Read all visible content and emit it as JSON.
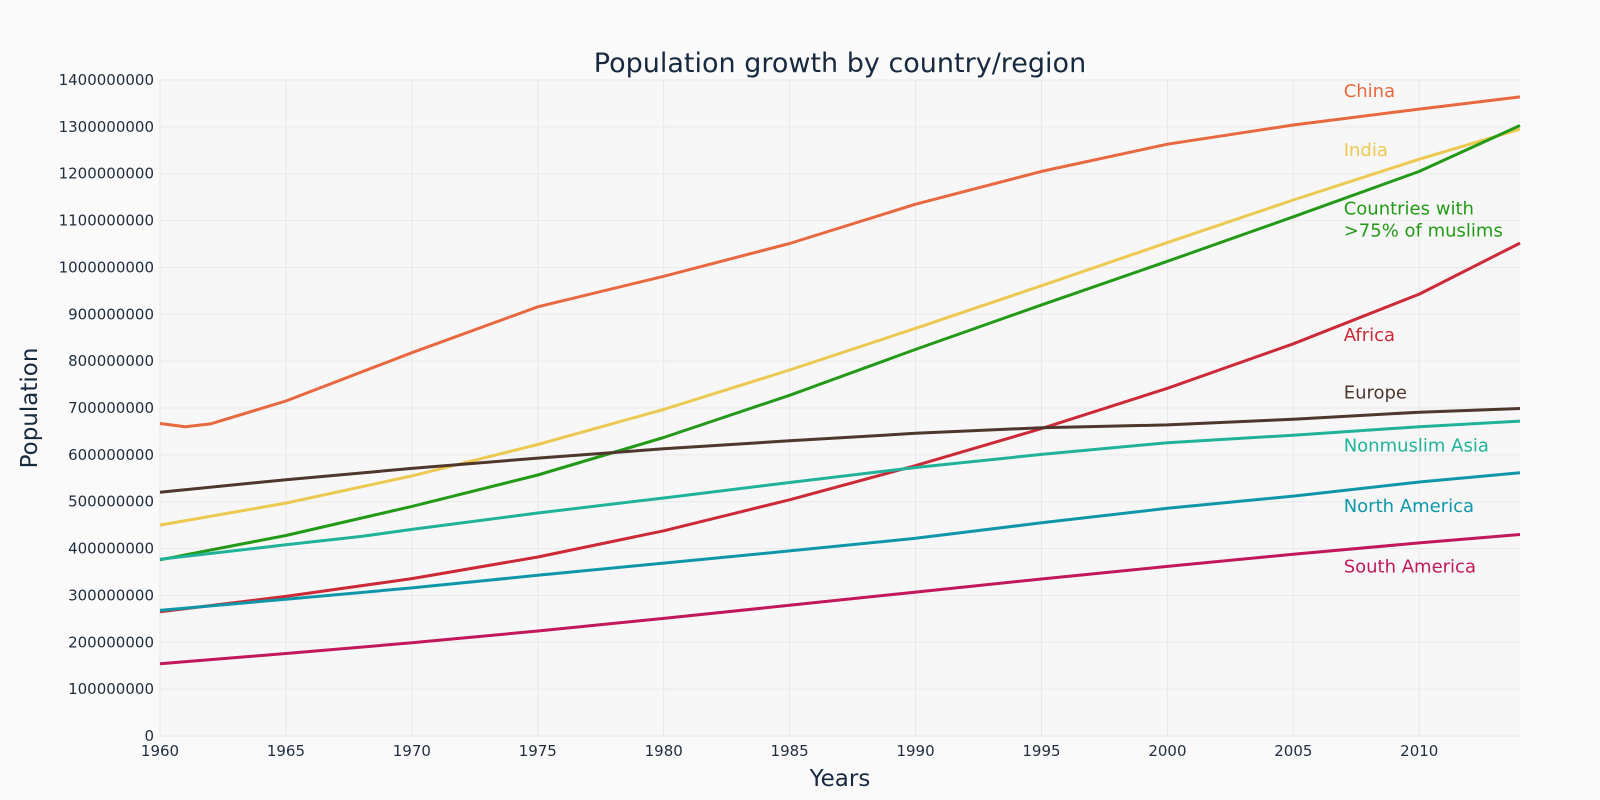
{
  "chart_data": {
    "type": "line",
    "title": "Population growth by country/region",
    "xlabel": "Years",
    "ylabel": "Population",
    "xlim": [
      1960,
      2014
    ],
    "ylim": [
      0,
      1400000000
    ],
    "grid": true,
    "x_ticks": [
      1960,
      1965,
      1970,
      1975,
      1980,
      1985,
      1990,
      1995,
      2000,
      2005,
      2010
    ],
    "x_tick_labels": [
      "1960",
      "1965",
      "1970",
      "1975",
      "1980",
      "1985",
      "1990",
      "1995",
      "2000",
      "2005",
      "2010"
    ],
    "y_ticks": [
      0,
      100000000,
      200000000,
      300000000,
      400000000,
      500000000,
      600000000,
      700000000,
      800000000,
      900000000,
      1000000000,
      1100000000,
      1200000000,
      1300000000,
      1400000000
    ],
    "y_tick_labels": [
      "0",
      "100000000",
      "200000000",
      "300000000",
      "400000000",
      "500000000",
      "600000000",
      "700000000",
      "800000000",
      "900000000",
      "1000000000",
      "1100000000",
      "1200000000",
      "1300000000",
      "1400000000"
    ],
    "series": [
      {
        "name": "China",
        "label_lines": [
          "China"
        ],
        "color": "#e8693f",
        "points": [
          [
            1960,
            667000000
          ],
          [
            1961,
            660000000
          ],
          [
            1962,
            666000000
          ],
          [
            1965,
            715000000
          ],
          [
            1970,
            818000000
          ],
          [
            1975,
            916000000
          ],
          [
            1980,
            981000000
          ],
          [
            1985,
            1051000000
          ],
          [
            1990,
            1135000000
          ],
          [
            1995,
            1205000000
          ],
          [
            2000,
            1263000000
          ],
          [
            2005,
            1304000000
          ],
          [
            2010,
            1338000000
          ],
          [
            2014,
            1364000000
          ]
        ]
      },
      {
        "name": "India",
        "label_lines": [
          "India"
        ],
        "color": "#edc951",
        "points": [
          [
            1960,
            450000000
          ],
          [
            1965,
            497000000
          ],
          [
            1970,
            555000000
          ],
          [
            1975,
            622000000
          ],
          [
            1980,
            697000000
          ],
          [
            1985,
            781000000
          ],
          [
            1990,
            870000000
          ],
          [
            1995,
            961000000
          ],
          [
            2000,
            1053000000
          ],
          [
            2005,
            1144000000
          ],
          [
            2010,
            1231000000
          ],
          [
            2014,
            1295000000
          ]
        ]
      },
      {
        "name": "Countries with >75% of muslims",
        "label_lines": [
          "Countries with",
          ">75% of muslims"
        ],
        "color": "#239a17",
        "points": [
          [
            1960,
            376000000
          ],
          [
            1965,
            428000000
          ],
          [
            1970,
            490000000
          ],
          [
            1975,
            557000000
          ],
          [
            1980,
            637000000
          ],
          [
            1985,
            727000000
          ],
          [
            1990,
            825000000
          ],
          [
            1995,
            920000000
          ],
          [
            2000,
            1013000000
          ],
          [
            2005,
            1108000000
          ],
          [
            2010,
            1205000000
          ],
          [
            2014,
            1303000000
          ]
        ]
      },
      {
        "name": "Africa",
        "label_lines": [
          "Africa"
        ],
        "color": "#cc2a36",
        "points": [
          [
            1960,
            265000000
          ],
          [
            1965,
            298000000
          ],
          [
            1970,
            336000000
          ],
          [
            1975,
            382000000
          ],
          [
            1980,
            438000000
          ],
          [
            1985,
            504000000
          ],
          [
            1990,
            577000000
          ],
          [
            1995,
            656000000
          ],
          [
            2000,
            742000000
          ],
          [
            2005,
            837000000
          ],
          [
            2010,
            943000000
          ],
          [
            2014,
            1052000000
          ]
        ]
      },
      {
        "name": "Europe",
        "label_lines": [
          "Europe"
        ],
        "color": "#4f372d",
        "points": [
          [
            1960,
            520000000
          ],
          [
            1965,
            547000000
          ],
          [
            1970,
            571000000
          ],
          [
            1975,
            593000000
          ],
          [
            1980,
            613000000
          ],
          [
            1985,
            630000000
          ],
          [
            1990,
            646000000
          ],
          [
            1995,
            658000000
          ],
          [
            2000,
            664000000
          ],
          [
            2005,
            676000000
          ],
          [
            2010,
            691000000
          ],
          [
            2014,
            699000000
          ]
        ]
      },
      {
        "name": "Nonmuslim Asia",
        "label_lines": [
          "Nonmuslim Asia"
        ],
        "color": "#20b39a",
        "points": [
          [
            1960,
            377000000
          ],
          [
            1965,
            408000000
          ],
          [
            1968,
            426000000
          ],
          [
            1970,
            441000000
          ],
          [
            1975,
            476000000
          ],
          [
            1980,
            508000000
          ],
          [
            1985,
            541000000
          ],
          [
            1990,
            573000000
          ],
          [
            1995,
            601000000
          ],
          [
            2000,
            626000000
          ],
          [
            2005,
            642000000
          ],
          [
            2010,
            660000000
          ],
          [
            2014,
            672000000
          ]
        ]
      },
      {
        "name": "North America",
        "label_lines": [
          "North America"
        ],
        "color": "#0f97a9",
        "points": [
          [
            1960,
            268000000
          ],
          [
            1965,
            292000000
          ],
          [
            1970,
            316000000
          ],
          [
            1975,
            343000000
          ],
          [
            1980,
            369000000
          ],
          [
            1985,
            395000000
          ],
          [
            1990,
            422000000
          ],
          [
            1995,
            455000000
          ],
          [
            2000,
            486000000
          ],
          [
            2005,
            512000000
          ],
          [
            2010,
            542000000
          ],
          [
            2014,
            562000000
          ]
        ]
      },
      {
        "name": "South America",
        "label_lines": [
          "South America"
        ],
        "color": "#c2185b",
        "points": [
          [
            1960,
            154000000
          ],
          [
            1965,
            176000000
          ],
          [
            1970,
            199000000
          ],
          [
            1975,
            224000000
          ],
          [
            1980,
            251000000
          ],
          [
            1985,
            279000000
          ],
          [
            1990,
            307000000
          ],
          [
            1995,
            335000000
          ],
          [
            2000,
            362000000
          ],
          [
            2005,
            388000000
          ],
          [
            2010,
            412000000
          ],
          [
            2014,
            430000000
          ]
        ]
      }
    ],
    "label_year": 2007,
    "label_values": [
      1364000000,
      1238000000,
      1113000000,
      843000000,
      720000000,
      607000000,
      478000000,
      349000000
    ]
  }
}
